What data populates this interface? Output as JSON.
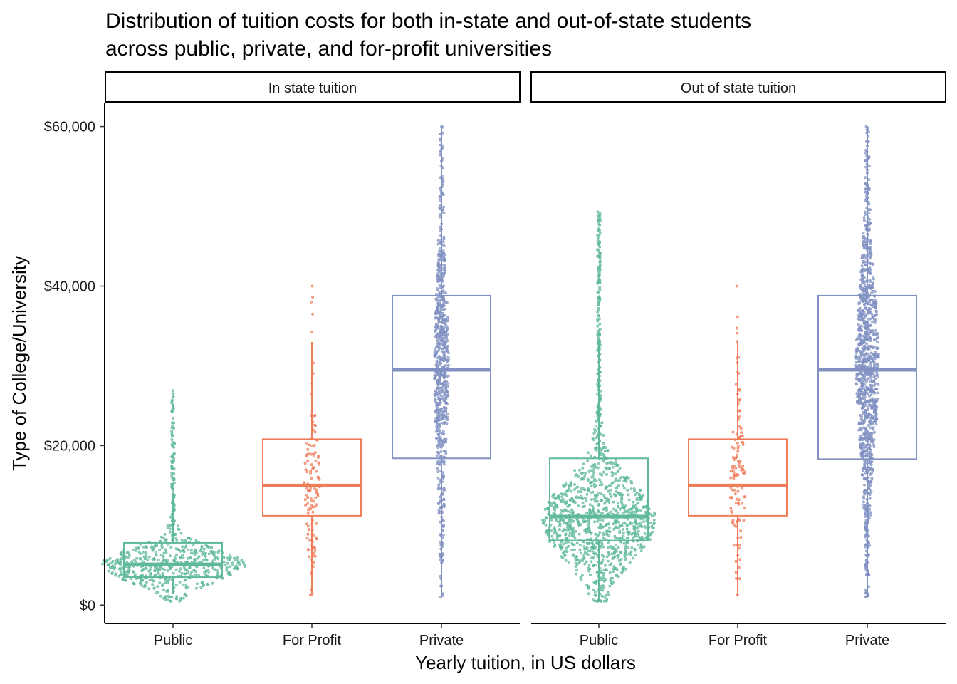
{
  "chart_data": {
    "type": "boxplot",
    "title": "Distribution of tuition costs for both in-state and out-of-state students across public, private, and for-profit universities",
    "title_lines": [
      "Distribution of tuition costs for both in-state and out-of-state students",
      "across public, private, and for-profit universities"
    ],
    "xlabel": "Yearly tuition, in US dollars",
    "ylabel": "Type of College/University",
    "ylim": [
      -2300,
      63000
    ],
    "y_ticks": [
      0,
      20000,
      40000,
      60000
    ],
    "y_tick_labels": [
      "$0",
      "$20,000",
      "$40,000",
      "$60,000"
    ],
    "categories": [
      "Public",
      "For Profit",
      "Private"
    ],
    "colors": {
      "Public": "#5fb99a",
      "For Profit": "#f07d5a",
      "Private": "#8091c2"
    },
    "facets": [
      {
        "label": "In state tuition",
        "boxes": [
          {
            "category": "Public",
            "q1": 3500,
            "median": 5100,
            "q3": 7800,
            "whisker_low": 1400,
            "whisker_high": 14100,
            "point_min": 500,
            "point_max": 26900,
            "n_points": 620,
            "density_mode": 5000,
            "spread": 3200,
            "max_half_width": 100
          },
          {
            "category": "For Profit",
            "q1": 11200,
            "median": 15000,
            "q3": 20800,
            "whisker_low": 1300,
            "whisker_high": 33000,
            "point_min": 1300,
            "point_max": 40000,
            "n_points": 120,
            "density_mode": 15000,
            "spread": 9000,
            "max_half_width": 9
          },
          {
            "category": "Private",
            "q1": 18400,
            "median": 29500,
            "q3": 38800,
            "whisker_low": 1000,
            "whisker_high": 60000,
            "point_min": 1000,
            "point_max": 60000,
            "n_points": 700,
            "density_mode": 30000,
            "spread": 16000,
            "max_half_width": 8
          }
        ]
      },
      {
        "label": "Out of state tuition",
        "boxes": [
          {
            "category": "Public",
            "q1": 8100,
            "median": 11100,
            "q3": 18400,
            "whisker_low": 500,
            "whisker_high": 33000,
            "point_min": 500,
            "point_max": 49300,
            "n_points": 1100,
            "density_mode": 10500,
            "spread": 7500,
            "max_half_width": 78
          },
          {
            "category": "For Profit",
            "q1": 11200,
            "median": 15000,
            "q3": 20800,
            "whisker_low": 1300,
            "whisker_high": 33000,
            "point_min": 1300,
            "point_max": 40000,
            "n_points": 120,
            "density_mode": 15000,
            "spread": 9000,
            "max_half_width": 9
          },
          {
            "category": "Private",
            "q1": 18300,
            "median": 29500,
            "q3": 38800,
            "whisker_low": 1000,
            "whisker_high": 60000,
            "point_min": 1000,
            "point_max": 60000,
            "n_points": 1100,
            "density_mode": 30000,
            "spread": 16000,
            "max_half_width": 14
          }
        ]
      }
    ]
  }
}
